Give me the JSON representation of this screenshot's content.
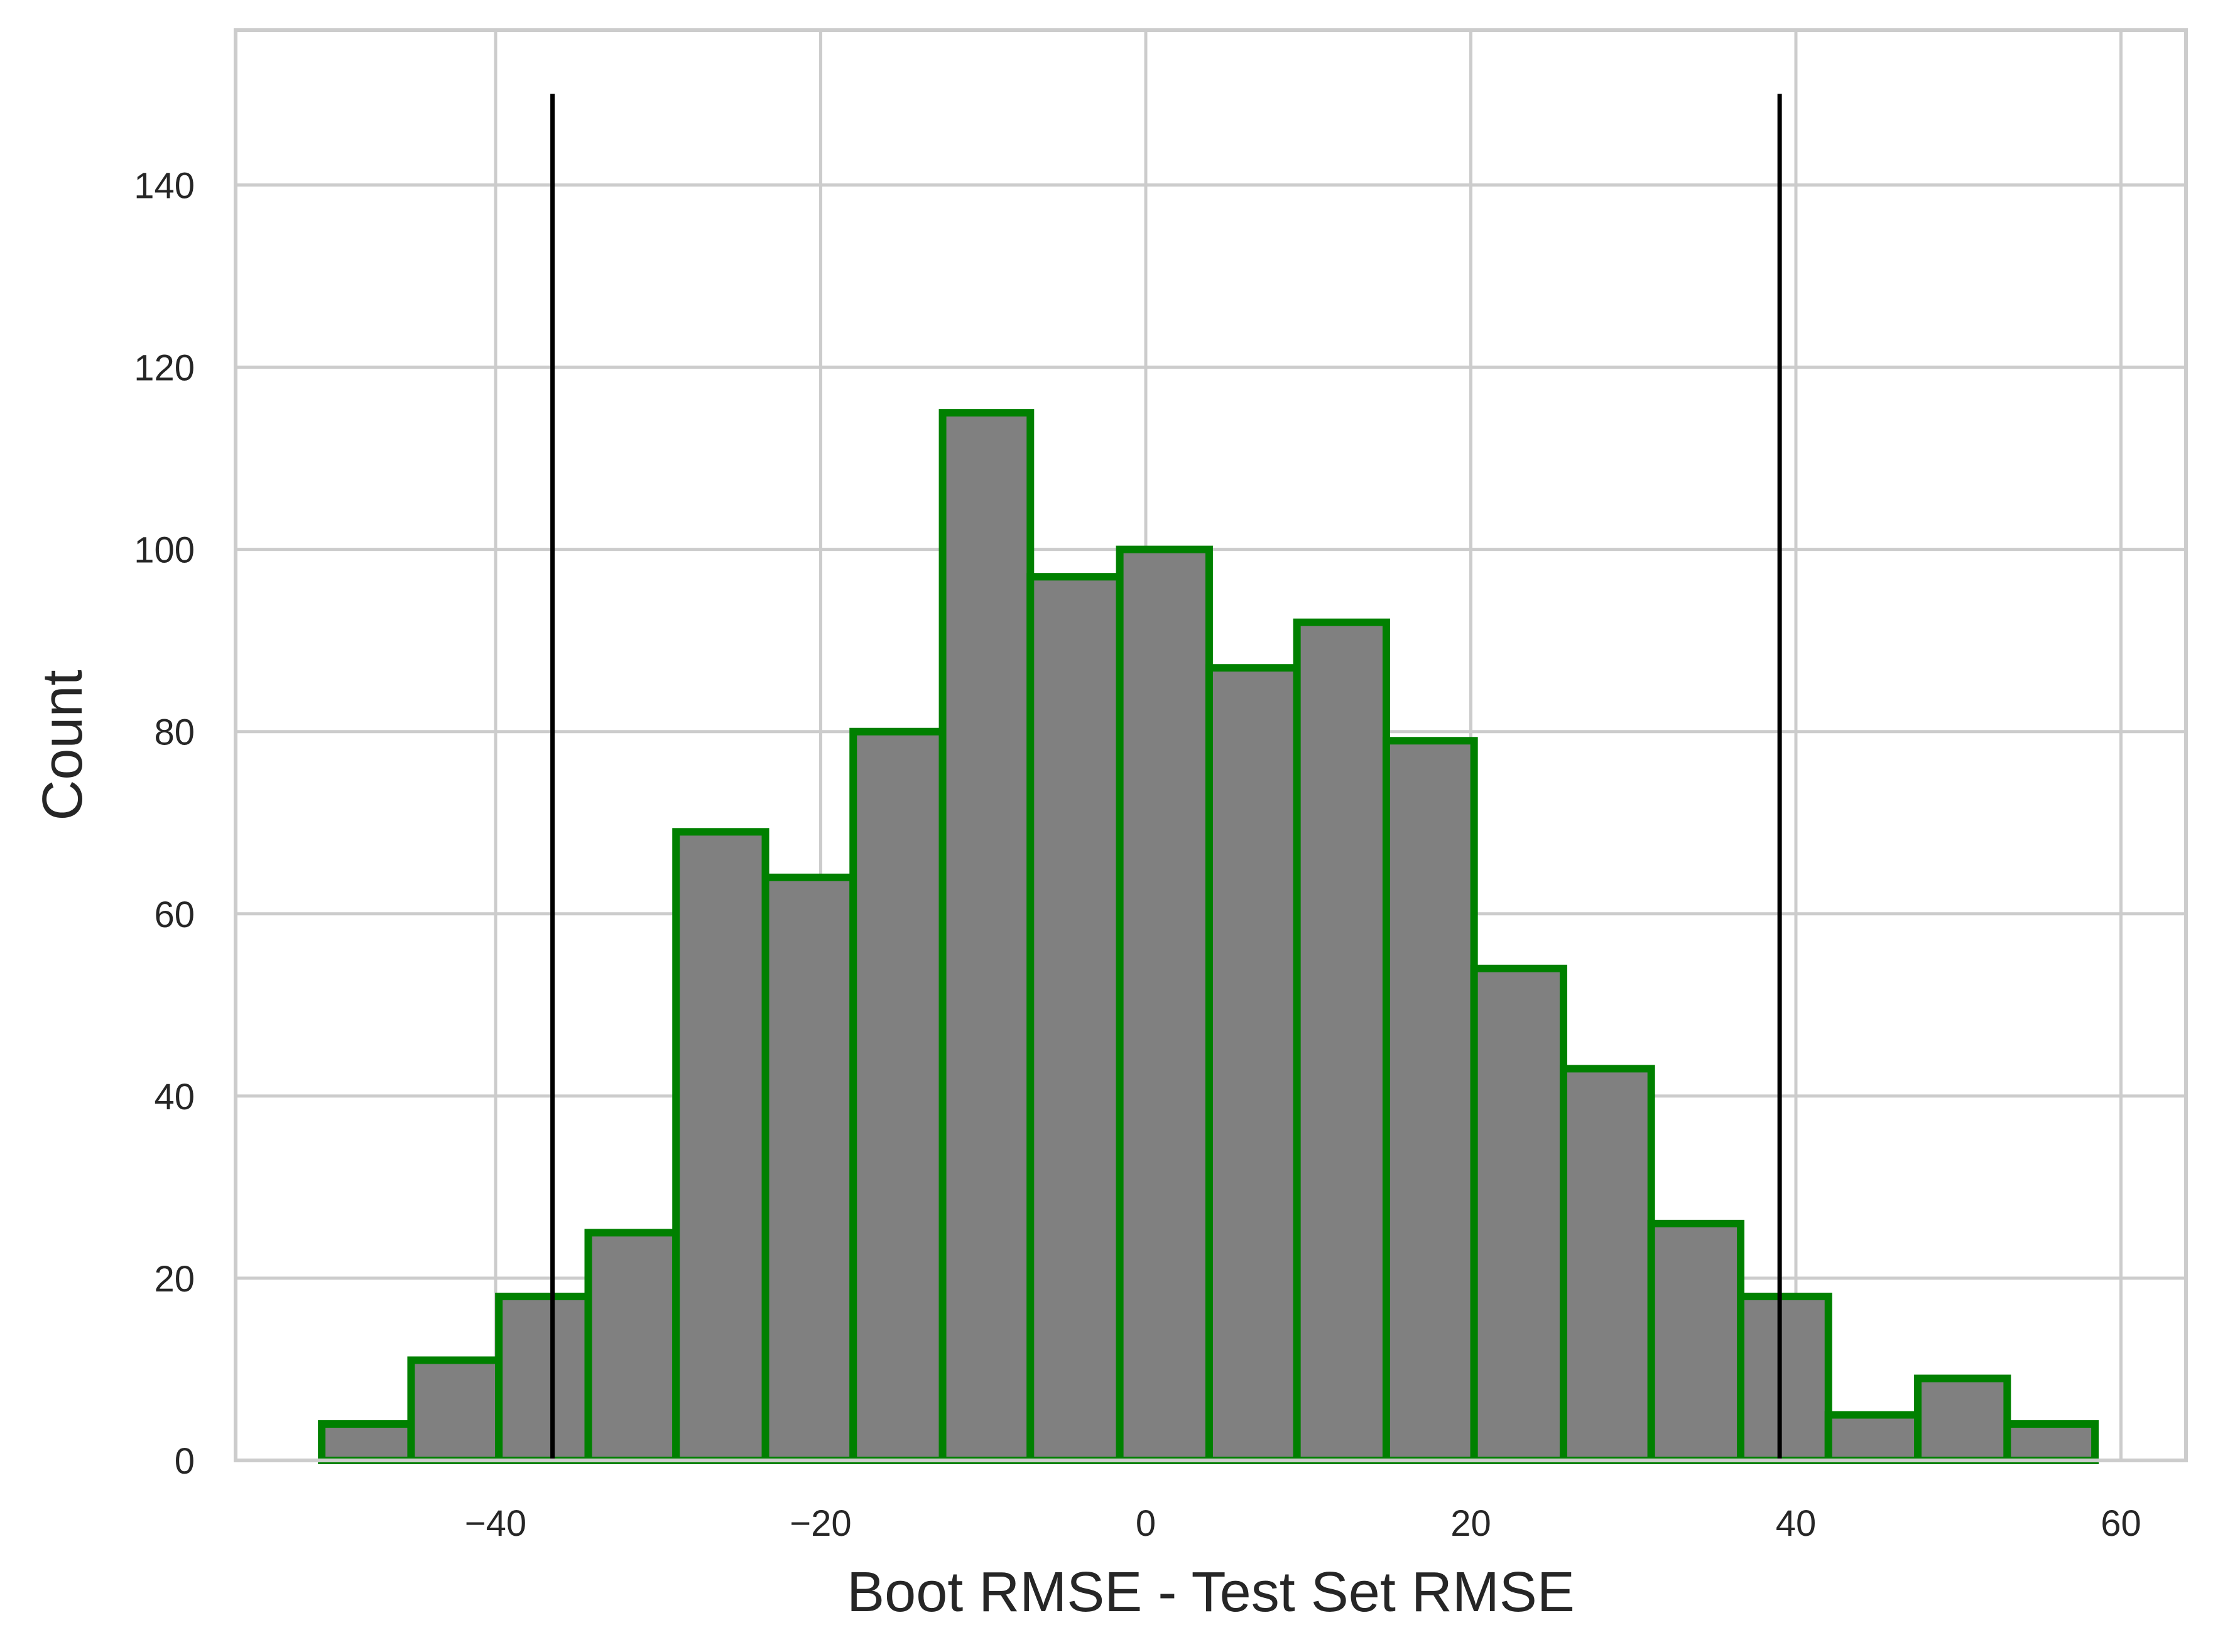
{
  "chart_data": {
    "type": "bar",
    "subtype": "histogram",
    "title": "",
    "xlabel": "Boot RMSE - Test Set RMSE",
    "ylabel": "Count",
    "xlim": [
      -56,
      64
    ],
    "ylim": [
      0,
      157
    ],
    "xticks": [
      -40,
      -20,
      0,
      20,
      40,
      60
    ],
    "xtick_labels": [
      "−40",
      "−20",
      "0",
      "20",
      "40",
      "60"
    ],
    "yticks": [
      0,
      20,
      40,
      60,
      80,
      100,
      120,
      140
    ],
    "ytick_labels": [
      "0",
      "20",
      "40",
      "60",
      "80",
      "100",
      "120",
      "140"
    ],
    "grid": true,
    "bins": {
      "edges": [
        -50.7,
        -45.2,
        -39.8,
        -34.3,
        -28.9,
        -23.4,
        -18.0,
        -12.5,
        -7.1,
        -1.6,
        3.9,
        9.3,
        14.8,
        20.2,
        25.7,
        31.1,
        36.6,
        42.0,
        47.5,
        53.0,
        58.4
      ],
      "counts": [
        4,
        11,
        18,
        25,
        69,
        64,
        80,
        115,
        97,
        100,
        87,
        92,
        79,
        54,
        43,
        26,
        18,
        5,
        9,
        4
      ]
    },
    "vertical_lines": [
      {
        "x": -36.5,
        "y_top": 150
      },
      {
        "x": 39.0,
        "y_top": 150
      }
    ],
    "colors": {
      "bar_fill": "#808080",
      "bar_edge": "#008000",
      "vline": "#000000",
      "grid": "#cccccc",
      "spine": "#cccccc"
    }
  }
}
